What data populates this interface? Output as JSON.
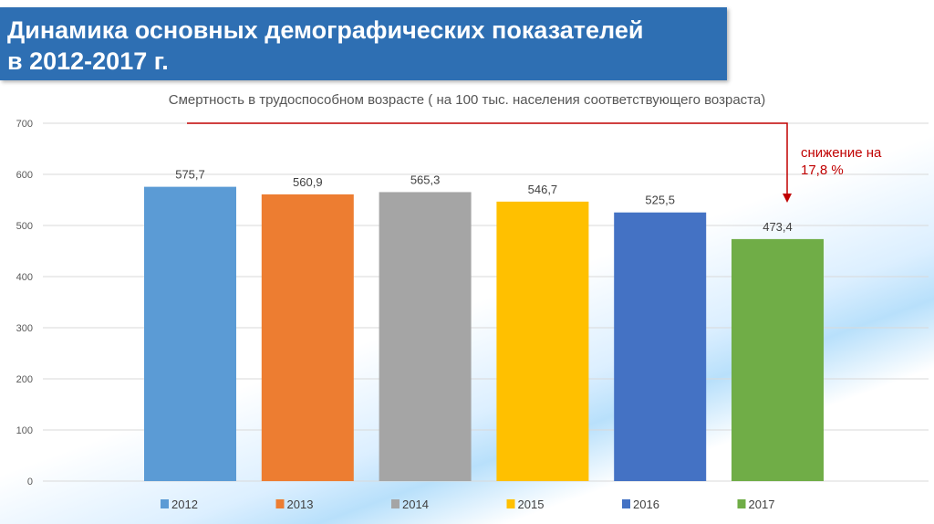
{
  "header": {
    "title_line1": "Динамика основных демографических показателей",
    "title_line2": "в 2012-2017 г."
  },
  "annotation": {
    "line1": "снижение на",
    "line2": "17,8 %",
    "color": "#c00000"
  },
  "chart_data": {
    "type": "bar",
    "title": "Смертность в трудоспособном возрасте ( на 100 тыс. населения соответствующего возраста)",
    "categories": [
      "2012",
      "2013",
      "2014",
      "2015",
      "2016",
      "2017"
    ],
    "values": [
      575.7,
      560.9,
      565.3,
      546.7,
      525.5,
      473.4
    ],
    "labels": [
      "575,7",
      "560,9",
      "565,3",
      "546,7",
      "525,5",
      "473,4"
    ],
    "colors": [
      "#5b9bd5",
      "#ed7d31",
      "#a5a5a5",
      "#ffc000",
      "#4472c4",
      "#70ad47"
    ],
    "ylim": [
      0,
      700
    ],
    "yticks": [
      "0",
      "100",
      "200",
      "300",
      "400",
      "500",
      "600",
      "700"
    ],
    "grid": true,
    "legend": "bottom",
    "xlabel": "",
    "ylabel": ""
  }
}
